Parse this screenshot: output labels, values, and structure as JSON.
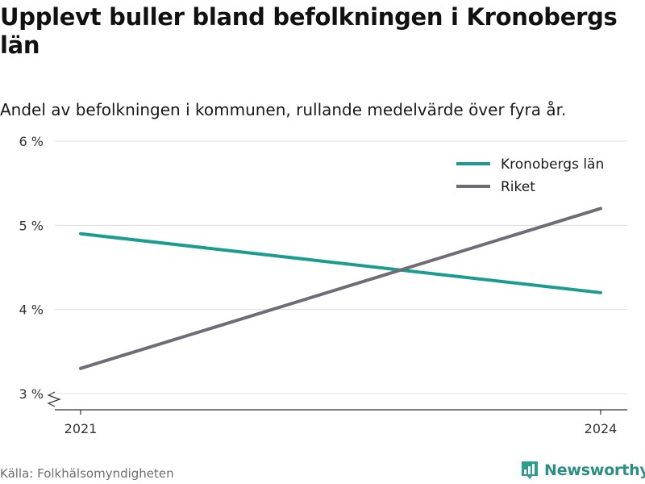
{
  "title": "Upplevt buller bland befolkningen i Kronobergs län",
  "subtitle": "Andel av befolkningen i kommunen, rullande medelvärde över fyra år.",
  "source": "Källa: Folkhälsomyndigheten",
  "brand": {
    "name": "Newsworthy",
    "icon": "newsworthy-logo-icon",
    "color": "#2a9d8f"
  },
  "chart_data": {
    "type": "line",
    "x": [
      2021,
      2024
    ],
    "x_tick_labels": [
      "2021",
      "2024"
    ],
    "y_ticks": [
      3,
      4,
      5,
      6
    ],
    "y_tick_labels": [
      "3 %",
      "4 %",
      "5 %",
      "6 %"
    ],
    "ylim": [
      3,
      6
    ],
    "y_axis_break": true,
    "grid": true,
    "legend_position": "top-right",
    "series": [
      {
        "name": "Kronobergs län",
        "color": "#1a9c90",
        "values": [
          4.9,
          4.2
        ]
      },
      {
        "name": "Riket",
        "color": "#6e6d75",
        "values": [
          3.3,
          5.2
        ]
      }
    ]
  }
}
